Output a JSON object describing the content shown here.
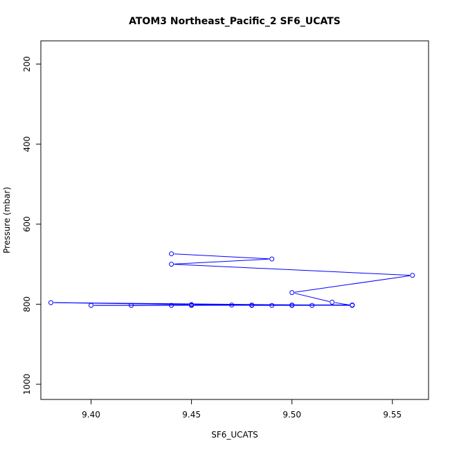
{
  "chart_data": {
    "type": "line",
    "title": "ATOM3 Northeast_Pacific_2 SF6_UCATS",
    "xlabel": "SF6_UCATS",
    "ylabel": "Pressure (mbar)",
    "xlim": [
      9.375,
      9.568
    ],
    "ylim": [
      1038,
      142
    ],
    "y_reversed": true,
    "x_ticks": [
      "9.40",
      "9.45",
      "9.50",
      "9.55"
    ],
    "y_ticks": [
      "200",
      "400",
      "600",
      "800",
      "1000"
    ],
    "grid": false,
    "line_color": "#0000ff",
    "markers": "open-circle",
    "series": [
      {
        "points": [
          {
            "x": 9.44,
            "y": 674
          },
          {
            "x": 9.49,
            "y": 687
          },
          {
            "x": 9.44,
            "y": 700
          },
          {
            "x": 9.56,
            "y": 728
          },
          {
            "x": 9.5,
            "y": 771
          },
          {
            "x": 9.52,
            "y": 795
          },
          {
            "x": 9.53,
            "y": 803
          },
          {
            "x": 9.38,
            "y": 796
          },
          {
            "x": 9.45,
            "y": 801
          },
          {
            "x": 9.53,
            "y": 802
          },
          {
            "x": 9.42,
            "y": 803
          },
          {
            "x": 9.45,
            "y": 802
          },
          {
            "x": 9.49,
            "y": 803
          },
          {
            "x": 9.53,
            "y": 802
          },
          {
            "x": 9.4,
            "y": 803
          },
          {
            "x": 9.44,
            "y": 803
          },
          {
            "x": 9.47,
            "y": 802
          },
          {
            "x": 9.48,
            "y": 803
          },
          {
            "x": 9.5,
            "y": 802
          },
          {
            "x": 9.51,
            "y": 803
          },
          {
            "x": 9.5,
            "y": 803
          },
          {
            "x": 9.48,
            "y": 802
          },
          {
            "x": 9.45,
            "y": 803
          }
        ]
      }
    ]
  }
}
